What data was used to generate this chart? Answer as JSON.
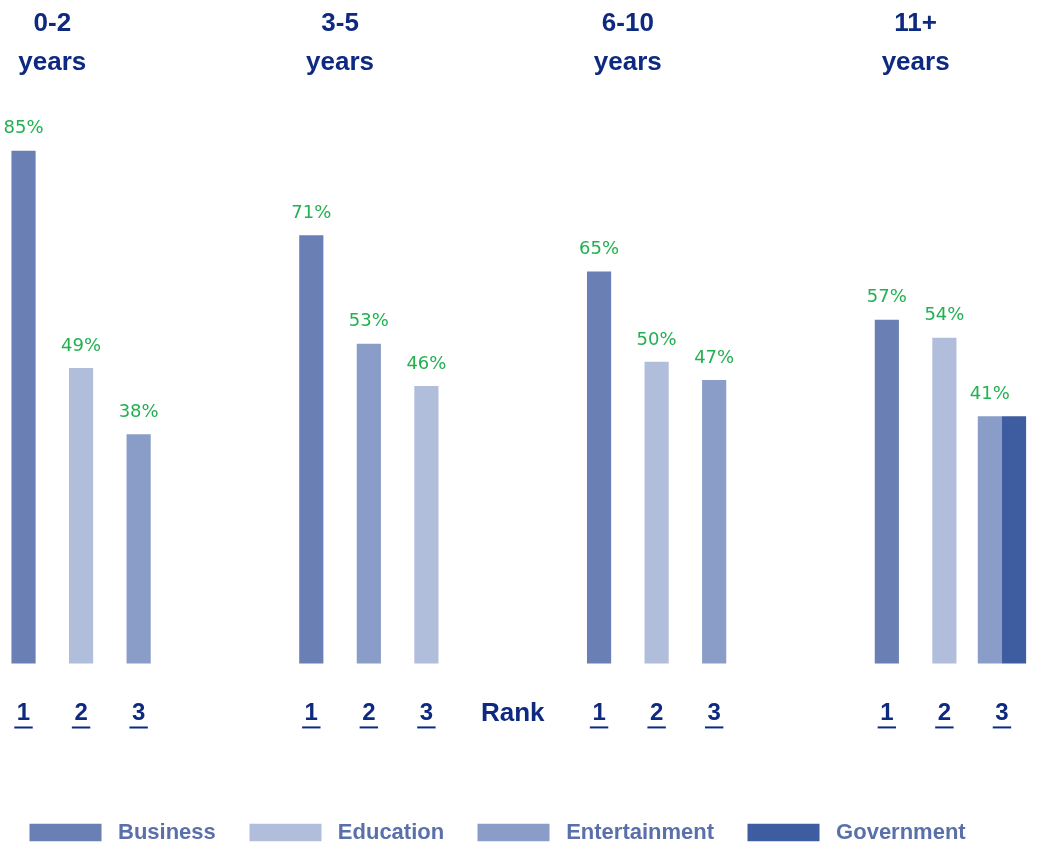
{
  "chart_data": {
    "type": "bar",
    "xlabel": "Rank",
    "legend": "bottom",
    "categories": [
      "1",
      "2",
      "3",
      null,
      null,
      "1",
      "2",
      "3",
      null,
      null,
      "1",
      "2",
      "3",
      null,
      null,
      "1",
      "2",
      "3"
    ],
    "annotations": [
      "0-2\nyears",
      "3-5\nyears",
      "6-10\nyears",
      "11+\nyears"
    ],
    "series": [
      {
        "name": "Business",
        "color": "#6a7fb4",
        "values": [
          85,
          null,
          null,
          null,
          null,
          71,
          null,
          null,
          null,
          null,
          65,
          null,
          null,
          null,
          null,
          57,
          null,
          null
        ],
        "value_labels": [
          "85%",
          null,
          null,
          null,
          null,
          "71%",
          null,
          null,
          null,
          null,
          "65%",
          null,
          null,
          null,
          null,
          "57%",
          null,
          null
        ]
      },
      {
        "name": "Education",
        "color": "#b1bedb",
        "values": [
          null,
          49,
          null,
          null,
          null,
          null,
          null,
          46,
          null,
          null,
          null,
          50,
          null,
          null,
          null,
          null,
          54,
          null
        ],
        "value_labels": [
          null,
          "49%",
          null,
          null,
          null,
          null,
          null,
          "46%",
          null,
          null,
          null,
          "50%",
          null,
          null,
          null,
          null,
          "54%",
          null
        ]
      },
      {
        "name": "Entertainment",
        "color": "#8a9dc8",
        "values": [
          null,
          null,
          38,
          null,
          null,
          null,
          53,
          null,
          null,
          null,
          null,
          null,
          47,
          null,
          null,
          null,
          null,
          41
        ],
        "value_labels": [
          null,
          null,
          "38%",
          null,
          null,
          null,
          "53%",
          null,
          null,
          null,
          null,
          null,
          "47%",
          null,
          null,
          null,
          null,
          "41%"
        ]
      },
      {
        "name": "Government",
        "color": "#3e5da0",
        "values": [
          null,
          null,
          null,
          null,
          null,
          null,
          null,
          null,
          null,
          null,
          null,
          null,
          null,
          null,
          null,
          null,
          null,
          41
        ],
        "value_labels": [
          null,
          null,
          null,
          null,
          null,
          null,
          null,
          null,
          null,
          null,
          null,
          null,
          null,
          null,
          null,
          null,
          null,
          null
        ]
      }
    ]
  }
}
